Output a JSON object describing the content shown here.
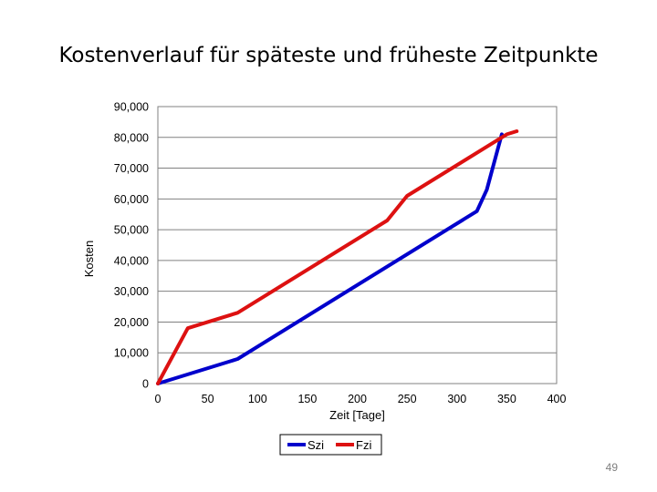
{
  "slide": {
    "title": "Kostenverlauf für späteste und früheste Zeitpunkte",
    "page_number": "49"
  },
  "chart_data": {
    "type": "line",
    "title": "",
    "xlabel": "Zeit [Tage]",
    "ylabel": "Kosten",
    "xlim": [
      0,
      400
    ],
    "ylim": [
      0,
      90000
    ],
    "x_ticks": [
      0,
      50,
      100,
      150,
      200,
      250,
      300,
      350,
      400
    ],
    "y_ticks": [
      0,
      10000,
      20000,
      30000,
      40000,
      50000,
      60000,
      70000,
      80000,
      90000
    ],
    "y_tick_labels": [
      "0",
      "10,000",
      "20,000",
      "30,000",
      "40,000",
      "50,000",
      "60,000",
      "70,000",
      "80,000",
      "90,000"
    ],
    "grid": "horizontal",
    "legend_position": "bottom",
    "series": [
      {
        "name": "Szi",
        "color": "#0000cc",
        "x": [
          0,
          80,
          320,
          330,
          345
        ],
        "y": [
          0,
          8000,
          56000,
          63000,
          81000
        ]
      },
      {
        "name": "Fzi",
        "color": "#dd1111",
        "x": [
          0,
          30,
          80,
          230,
          250,
          350,
          360
        ],
        "y": [
          0,
          18000,
          23000,
          53000,
          61000,
          81000,
          82000
        ]
      }
    ]
  }
}
